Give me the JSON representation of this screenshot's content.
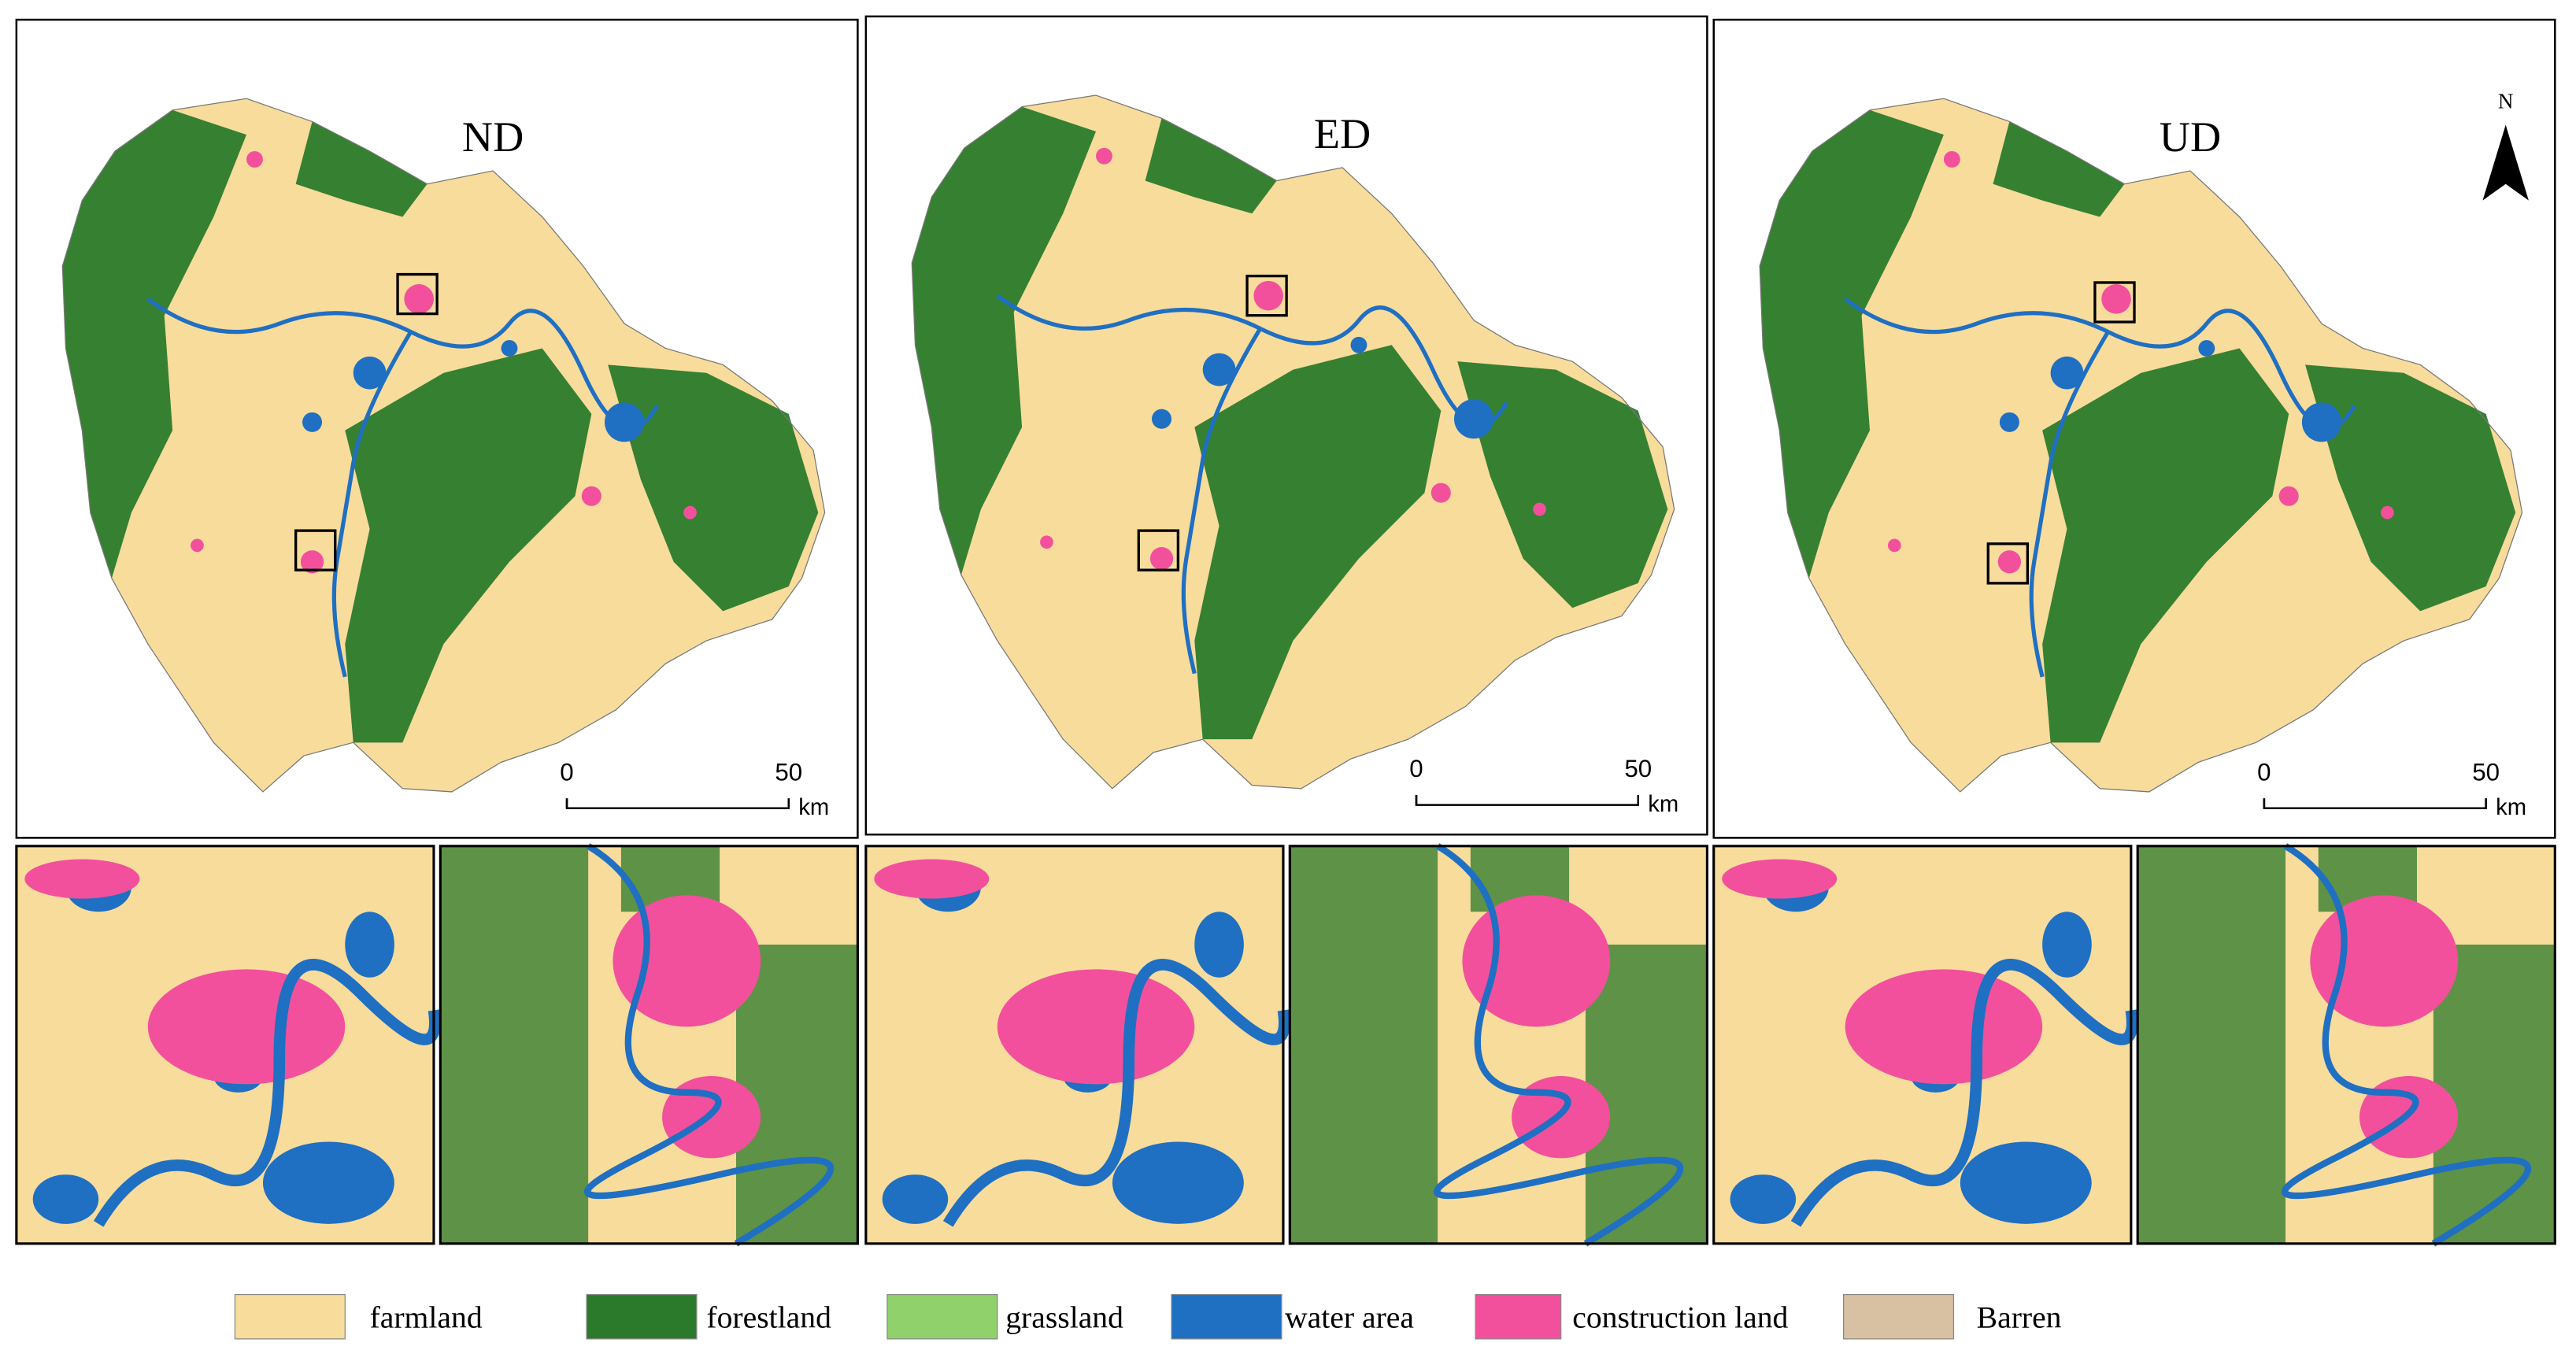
{
  "panels": [
    {
      "title": "ND"
    },
    {
      "title": "ED"
    },
    {
      "title": "UD"
    }
  ],
  "scale_bar": {
    "ticks": [
      0,
      50
    ],
    "unit": "km"
  },
  "north": "N",
  "legend": [
    {
      "label": "farmland",
      "color": "#f8dc9c"
    },
    {
      "label": "forestland",
      "color": "#2b7a2b"
    },
    {
      "label": "grassland",
      "color": "#90d16c"
    },
    {
      "label": "water area",
      "color": "#1f6fc2"
    },
    {
      "label": "construction land",
      "color": "#f2509c"
    },
    {
      "label": "Barren",
      "color": "#d8c0a2"
    }
  ]
}
